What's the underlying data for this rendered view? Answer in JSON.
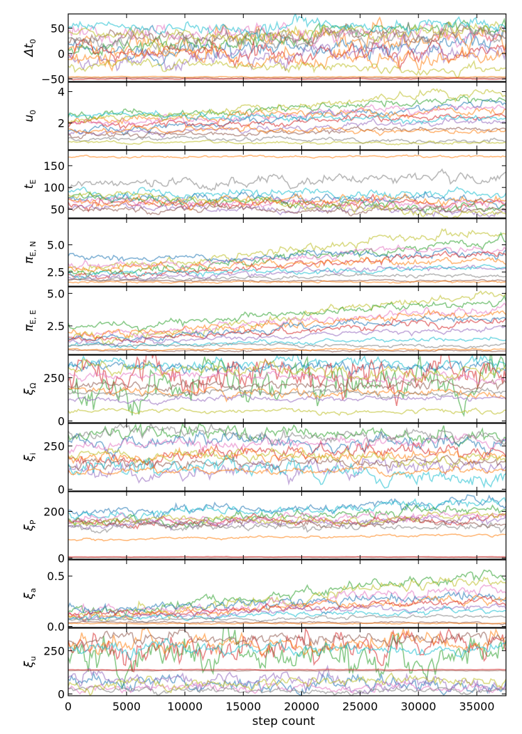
{
  "figure": {
    "xlabel": "step count"
  },
  "chart_data": {
    "type": "line",
    "description_hint": "MCMC walker trace plots, 10 stacked panels sharing x axis",
    "x_axis": {
      "label": "step count",
      "range": [
        0,
        37500
      ],
      "ticks": [
        0,
        5000,
        10000,
        15000,
        20000,
        25000,
        30000,
        35000
      ],
      "tick_labels": [
        "0",
        "5000",
        "10000",
        "15000",
        "20000",
        "25000",
        "30000",
        "35000"
      ]
    },
    "walker_colors": [
      "#1f77b4",
      "#ff7f0e",
      "#2ca02c",
      "#d62728",
      "#9467bd",
      "#8c564b",
      "#e377c2",
      "#7f7f7f",
      "#bcbd22",
      "#17becf"
    ],
    "grid": false,
    "panels": [
      {
        "ylabel_base": "Δt",
        "ylabel_sub": "0",
        "ylim": [
          -55,
          78
        ],
        "yticks": [
          -50,
          0,
          50
        ],
        "ytick_labels": [
          "−50",
          "0",
          "50"
        ],
        "walkers": [
          {
            "start": 5,
            "end": 20,
            "sd": 10,
            "color": "#1f77b4"
          },
          {
            "start": 20,
            "end": 35,
            "sd": 12,
            "color": "#ff7f0e"
          },
          {
            "start": 10,
            "end": 55,
            "sd": 8,
            "color": "#2ca02c"
          },
          {
            "start": 0,
            "end": 5,
            "sd": 10,
            "color": "#d62728"
          },
          {
            "start": -10,
            "end": 10,
            "sd": 10,
            "color": "#9467bd"
          },
          {
            "start": 30,
            "end": 40,
            "sd": 8,
            "color": "#8c564b"
          },
          {
            "start": 40,
            "end": 35,
            "sd": 10,
            "color": "#e377c2"
          },
          {
            "start": 25,
            "end": 40,
            "sd": 10,
            "color": "#7f7f7f"
          },
          {
            "start": 35,
            "end": 45,
            "sd": 8,
            "color": "#bcbd22"
          },
          {
            "start": 50,
            "end": 55,
            "sd": 8,
            "color": "#17becf"
          },
          {
            "start": -5,
            "end": -15,
            "sd": 10,
            "color": "#ff7f0e"
          },
          {
            "start": -20,
            "end": -30,
            "sd": 6,
            "color": "#bcbd22"
          },
          {
            "start": -48,
            "end": -48,
            "sd": 0.5,
            "color": "#8c564b"
          },
          {
            "start": -46,
            "end": -46,
            "sd": 0.5,
            "color": "#ff7f0e"
          },
          {
            "start": -50,
            "end": -50,
            "sd": 0.5,
            "color": "#d62728"
          }
        ]
      },
      {
        "ylabel_base": "u",
        "ylabel_sub": "0",
        "ylim": [
          0.3,
          4.6
        ],
        "yticks": [
          2,
          4
        ],
        "ytick_labels": [
          "2",
          "4"
        ],
        "walkers": [
          {
            "start": 2.4,
            "end": 3.5,
            "sd": 0.15,
            "color": "#2ca02c"
          },
          {
            "start": 1.5,
            "end": 3.2,
            "sd": 0.15,
            "color": "#1f77b4"
          },
          {
            "start": 2.2,
            "end": 2.8,
            "sd": 0.15,
            "color": "#ff7f0e"
          },
          {
            "start": 1.8,
            "end": 2.5,
            "sd": 0.12,
            "color": "#d62728"
          },
          {
            "start": 1.4,
            "end": 2.0,
            "sd": 0.12,
            "color": "#9467bd"
          },
          {
            "start": 1.2,
            "end": 1.6,
            "sd": 0.1,
            "color": "#8c564b"
          },
          {
            "start": 2.0,
            "end": 3.0,
            "sd": 0.15,
            "color": "#e377c2"
          },
          {
            "start": 1.0,
            "end": 0.9,
            "sd": 0.08,
            "color": "#7f7f7f"
          },
          {
            "start": 2.3,
            "end": 3.9,
            "sd": 0.15,
            "color": "#bcbd22"
          },
          {
            "start": 2.5,
            "end": 2.2,
            "sd": 0.12,
            "color": "#17becf"
          },
          {
            "start": 0.8,
            "end": 0.7,
            "sd": 0.05,
            "color": "#bcbd22"
          },
          {
            "start": 1.6,
            "end": 1.5,
            "sd": 0.1,
            "color": "#ff7f0e"
          }
        ]
      },
      {
        "ylabel_base": "t",
        "ylabel_sub": "E",
        "ylim": [
          30,
          185
        ],
        "yticks": [
          50,
          100,
          150
        ],
        "ytick_labels": [
          "50",
          "100",
          "150"
        ],
        "walkers": [
          {
            "start": 170,
            "end": 172,
            "sd": 1.5,
            "color": "#ff7f0e"
          },
          {
            "start": 110,
            "end": 125,
            "sd": 8,
            "color": "#7f7f7f"
          },
          {
            "start": 90,
            "end": 85,
            "sd": 6,
            "color": "#17becf"
          },
          {
            "start": 75,
            "end": 70,
            "sd": 6,
            "color": "#1f77b4"
          },
          {
            "start": 60,
            "end": 65,
            "sd": 6,
            "color": "#d62728"
          },
          {
            "start": 80,
            "end": 55,
            "sd": 6,
            "color": "#2ca02c"
          },
          {
            "start": 55,
            "end": 45,
            "sd": 5,
            "color": "#9467bd"
          },
          {
            "start": 70,
            "end": 60,
            "sd": 6,
            "color": "#e377c2"
          },
          {
            "start": 50,
            "end": 50,
            "sd": 4,
            "color": "#8c564b"
          },
          {
            "start": 65,
            "end": 75,
            "sd": 6,
            "color": "#ff7f0e"
          },
          {
            "start": 85,
            "end": 40,
            "sd": 5,
            "color": "#bcbd22"
          }
        ]
      },
      {
        "ylabel_base": "π",
        "ylabel_sub": "E, N",
        "ylim": [
          1.2,
          7.4
        ],
        "yticks": [
          2.5,
          5.0
        ],
        "ytick_labels": [
          "2.5",
          "5.0"
        ],
        "walkers": [
          {
            "start": 3.0,
            "end": 6.0,
            "sd": 0.25,
            "color": "#bcbd22"
          },
          {
            "start": 2.5,
            "end": 5.2,
            "sd": 0.25,
            "color": "#2ca02c"
          },
          {
            "start": 3.0,
            "end": 4.6,
            "sd": 0.2,
            "color": "#e377c2"
          },
          {
            "start": 3.8,
            "end": 4.2,
            "sd": 0.2,
            "color": "#1f77b4"
          },
          {
            "start": 2.2,
            "end": 4.0,
            "sd": 0.2,
            "color": "#d62728"
          },
          {
            "start": 2.8,
            "end": 3.6,
            "sd": 0.2,
            "color": "#ff7f0e"
          },
          {
            "start": 2.0,
            "end": 3.0,
            "sd": 0.15,
            "color": "#9467bd"
          },
          {
            "start": 2.4,
            "end": 2.8,
            "sd": 0.15,
            "color": "#17becf"
          },
          {
            "start": 1.8,
            "end": 2.2,
            "sd": 0.1,
            "color": "#7f7f7f"
          },
          {
            "start": 1.7,
            "end": 1.7,
            "sd": 0.05,
            "color": "#8c564b"
          },
          {
            "start": 1.6,
            "end": 1.6,
            "sd": 0.05,
            "color": "#ff7f0e"
          }
        ]
      },
      {
        "ylabel_base": "π",
        "ylabel_sub": "E, E",
        "ylim": [
          0.3,
          5.5
        ],
        "yticks": [
          2.5,
          5.0
        ],
        "ytick_labels": [
          "2.5",
          "5.0"
        ],
        "walkers": [
          {
            "start": 1.5,
            "end": 4.8,
            "sd": 0.2,
            "color": "#bcbd22"
          },
          {
            "start": 2.5,
            "end": 4.3,
            "sd": 0.2,
            "color": "#2ca02c"
          },
          {
            "start": 1.8,
            "end": 3.8,
            "sd": 0.2,
            "color": "#e377c2"
          },
          {
            "start": 2.0,
            "end": 3.4,
            "sd": 0.2,
            "color": "#ff7f0e"
          },
          {
            "start": 1.6,
            "end": 3.0,
            "sd": 0.15,
            "color": "#1f77b4"
          },
          {
            "start": 1.4,
            "end": 2.8,
            "sd": 0.15,
            "color": "#d62728"
          },
          {
            "start": 1.2,
            "end": 2.2,
            "sd": 0.12,
            "color": "#9467bd"
          },
          {
            "start": 1.0,
            "end": 1.5,
            "sd": 0.1,
            "color": "#17becf"
          },
          {
            "start": 1.0,
            "end": 1.0,
            "sd": 0.08,
            "color": "#7f7f7f"
          },
          {
            "start": 0.6,
            "end": 0.6,
            "sd": 0.04,
            "color": "#8c564b"
          },
          {
            "start": 0.7,
            "end": 0.7,
            "sd": 0.04,
            "color": "#ff7f0e"
          }
        ]
      },
      {
        "ylabel_base": "ξ",
        "ylabel_sub": "Ω",
        "ylim": [
          -10,
          380
        ],
        "yticks": [
          0,
          250
        ],
        "ytick_labels": [
          "0",
          "250"
        ],
        "walkers": [
          {
            "start": 320,
            "end": 330,
            "sd": 20,
            "color": "#17becf"
          },
          {
            "start": 300,
            "end": 320,
            "sd": 20,
            "color": "#1f77b4"
          },
          {
            "start": 200,
            "end": 200,
            "sd": 60,
            "color": "#2ca02c"
          },
          {
            "start": 250,
            "end": 250,
            "sd": 60,
            "color": "#d62728"
          },
          {
            "start": 180,
            "end": 150,
            "sd": 15,
            "color": "#ff7f0e"
          },
          {
            "start": 120,
            "end": 130,
            "sd": 10,
            "color": "#9467bd"
          },
          {
            "start": 200,
            "end": 210,
            "sd": 15,
            "color": "#8c564b"
          },
          {
            "start": 270,
            "end": 250,
            "sd": 15,
            "color": "#e377c2"
          },
          {
            "start": 60,
            "end": 50,
            "sd": 8,
            "color": "#bcbd22"
          },
          {
            "start": 160,
            "end": 160,
            "sd": 10,
            "color": "#7f7f7f"
          },
          {
            "start": 300,
            "end": 280,
            "sd": 20,
            "color": "#bcbd22"
          }
        ]
      },
      {
        "ylabel_base": "ξ",
        "ylabel_sub": "i",
        "ylim": [
          -10,
          380
        ],
        "yticks": [
          0,
          250
        ],
        "ytick_labels": [
          "0",
          "250"
        ],
        "walkers": [
          {
            "start": 320,
            "end": 300,
            "sd": 25,
            "color": "#2ca02c"
          },
          {
            "start": 280,
            "end": 260,
            "sd": 25,
            "color": "#1f77b4"
          },
          {
            "start": 200,
            "end": 220,
            "sd": 25,
            "color": "#d62728"
          },
          {
            "start": 180,
            "end": 200,
            "sd": 20,
            "color": "#ff7f0e"
          },
          {
            "start": 100,
            "end": 120,
            "sd": 25,
            "color": "#9467bd"
          },
          {
            "start": 150,
            "end": 160,
            "sd": 15,
            "color": "#8c564b"
          },
          {
            "start": 250,
            "end": 280,
            "sd": 20,
            "color": "#e377c2"
          },
          {
            "start": 330,
            "end": 300,
            "sd": 20,
            "color": "#7f7f7f"
          },
          {
            "start": 200,
            "end": 180,
            "sd": 20,
            "color": "#bcbd22"
          },
          {
            "start": 140,
            "end": 60,
            "sd": 30,
            "color": "#17becf"
          },
          {
            "start": 110,
            "end": 100,
            "sd": 10,
            "color": "#ff7f0e"
          }
        ]
      },
      {
        "ylabel_base": "ξ",
        "ylabel_sub": "P",
        "ylim": [
          -5,
          285
        ],
        "yticks": [
          0,
          200
        ],
        "ytick_labels": [
          "0",
          "200"
        ],
        "walkers": [
          {
            "start": 200,
            "end": 240,
            "sd": 12,
            "color": "#1f77b4"
          },
          {
            "start": 190,
            "end": 230,
            "sd": 12,
            "color": "#17becf"
          },
          {
            "start": 160,
            "end": 200,
            "sd": 12,
            "color": "#2ca02c"
          },
          {
            "start": 150,
            "end": 170,
            "sd": 10,
            "color": "#d62728"
          },
          {
            "start": 140,
            "end": 160,
            "sd": 10,
            "color": "#9467bd"
          },
          {
            "start": 150,
            "end": 150,
            "sd": 10,
            "color": "#8c564b"
          },
          {
            "start": 170,
            "end": 180,
            "sd": 10,
            "color": "#e377c2"
          },
          {
            "start": 130,
            "end": 140,
            "sd": 10,
            "color": "#7f7f7f"
          },
          {
            "start": 160,
            "end": 175,
            "sd": 10,
            "color": "#bcbd22"
          },
          {
            "start": 80,
            "end": 100,
            "sd": 3,
            "color": "#ff7f0e"
          },
          {
            "start": 3,
            "end": 3,
            "sd": 0.5,
            "color": "#8c564b"
          },
          {
            "start": 5,
            "end": 5,
            "sd": 0.5,
            "color": "#d62728"
          }
        ]
      },
      {
        "ylabel_base": "ξ",
        "ylabel_sub": "a",
        "ylim": [
          -0.01,
          0.66
        ],
        "yticks": [
          0.0,
          0.5
        ],
        "ytick_labels": [
          "0.0",
          "0.5"
        ],
        "walkers": [
          {
            "start": 0.15,
            "end": 0.5,
            "sd": 0.03,
            "color": "#2ca02c"
          },
          {
            "start": 0.12,
            "end": 0.45,
            "sd": 0.03,
            "color": "#bcbd22"
          },
          {
            "start": 0.15,
            "end": 0.35,
            "sd": 0.03,
            "color": "#e377c2"
          },
          {
            "start": 0.18,
            "end": 0.3,
            "sd": 0.03,
            "color": "#1f77b4"
          },
          {
            "start": 0.1,
            "end": 0.28,
            "sd": 0.025,
            "color": "#ff7f0e"
          },
          {
            "start": 0.12,
            "end": 0.24,
            "sd": 0.02,
            "color": "#d62728"
          },
          {
            "start": 0.1,
            "end": 0.2,
            "sd": 0.02,
            "color": "#9467bd"
          },
          {
            "start": 0.08,
            "end": 0.15,
            "sd": 0.015,
            "color": "#17becf"
          },
          {
            "start": 0.06,
            "end": 0.1,
            "sd": 0.01,
            "color": "#7f7f7f"
          },
          {
            "start": 0.04,
            "end": 0.04,
            "sd": 0.005,
            "color": "#8c564b"
          },
          {
            "start": 0.03,
            "end": 0.03,
            "sd": 0.003,
            "color": "#ff7f0e"
          }
        ]
      },
      {
        "ylabel_base": "ξ",
        "ylabel_sub": "u",
        "ylim": [
          -10,
          380
        ],
        "yticks": [
          0,
          250
        ],
        "ytick_labels": [
          "0",
          "250"
        ],
        "walkers": [
          {
            "start": 200,
            "end": 280,
            "sd": 60,
            "color": "#2ca02c"
          },
          {
            "start": 250,
            "end": 290,
            "sd": 50,
            "color": "#d62728"
          },
          {
            "start": 300,
            "end": 300,
            "sd": 30,
            "color": "#ff7f0e"
          },
          {
            "start": 320,
            "end": 310,
            "sd": 20,
            "color": "#8c564b"
          },
          {
            "start": 260,
            "end": 250,
            "sd": 20,
            "color": "#17becf"
          },
          {
            "start": 80,
            "end": 40,
            "sd": 25,
            "color": "#1f77b4"
          },
          {
            "start": 100,
            "end": 60,
            "sd": 25,
            "color": "#9467bd"
          },
          {
            "start": 40,
            "end": 30,
            "sd": 15,
            "color": "#e377c2"
          },
          {
            "start": 20,
            "end": 20,
            "sd": 10,
            "color": "#7f7f7f"
          },
          {
            "start": 60,
            "end": 80,
            "sd": 20,
            "color": "#bcbd22"
          },
          {
            "start": 135,
            "end": 135,
            "sd": 1,
            "color": "#8c564b"
          },
          {
            "start": 140,
            "end": 140,
            "sd": 1,
            "color": "#d62728"
          }
        ]
      }
    ]
  }
}
